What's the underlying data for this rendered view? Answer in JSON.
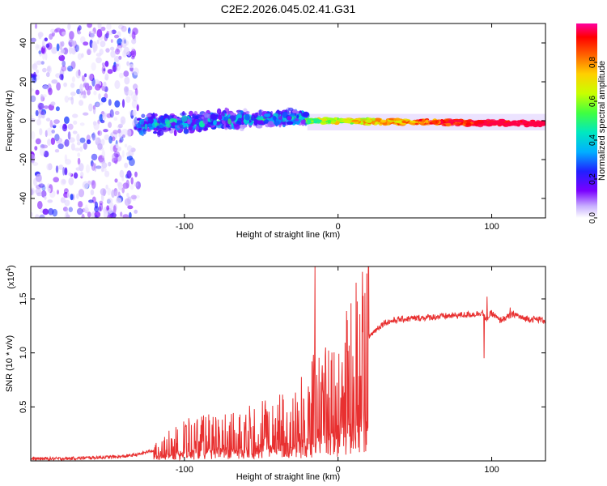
{
  "figure_title": "C2E2.2026.045.02.41.G31",
  "chart_data": [
    {
      "type": "heatmap",
      "title": "C2E2.2026.045.02.41.G31",
      "xlabel": "Height of straight line (km)",
      "ylabel": "Frequency (Hz)",
      "xlim": [
        -200,
        135
      ],
      "ylim": [
        -50,
        50
      ],
      "x_ticks": [
        -100,
        0,
        100
      ],
      "y_ticks": [
        -40,
        -20,
        0,
        20,
        40
      ],
      "colorbar": {
        "label": "Normalized spectral amplitude",
        "range": [
          0,
          1
        ],
        "ticks": [
          0.0,
          0.2,
          0.4,
          0.6,
          0.8
        ],
        "tick_labels": [
          "0.0",
          "0.2",
          "0.4",
          "0.6",
          "0.8"
        ],
        "colormap": [
          "#ffffff",
          "#c8b0ff",
          "#7a00ff",
          "#2020ff",
          "#00b0ff",
          "#00e8c0",
          "#40ff40",
          "#c8ff00",
          "#ffd000",
          "#ff6000",
          "#ff0000",
          "#ff00a0"
        ]
      },
      "regions": [
        {
          "name": "noise",
          "x_range": [
            -200,
            -130
          ],
          "freq_spread": 50,
          "amplitude": [
            0.0,
            0.3
          ]
        },
        {
          "name": "rising-signal",
          "x_range": [
            -130,
            -20
          ],
          "freq_center": [
            -2,
            2
          ],
          "freq_spread": [
            7,
            5
          ],
          "amplitude": [
            0.15,
            0.55
          ]
        },
        {
          "name": "strong-signal",
          "x_range": [
            -20,
            135
          ],
          "freq_center": [
            0,
            -1.5
          ],
          "freq_spread": 1.5,
          "amplitude": [
            0.45,
            0.95
          ]
        }
      ]
    },
    {
      "type": "line",
      "xlabel": "Height of straight line (km)",
      "ylabel": "SNR (10 * v/v)",
      "y_multiplier": "(x10^4)",
      "y_multiplier_base": "(x10",
      "y_multiplier_exp": "4",
      "y_multiplier_close": ")",
      "xlim": [
        -200,
        135
      ],
      "ylim": [
        0,
        1.8
      ],
      "x_ticks": [
        -100,
        0,
        100
      ],
      "y_ticks": [
        0.5,
        1.0,
        1.5
      ],
      "y_tick_labels": [
        "0.5",
        "1.0",
        "1.5"
      ],
      "color": "#e83030",
      "series": [
        {
          "name": "SNR",
          "x": [
            -200,
            -180,
            -160,
            -140,
            -130,
            -120,
            -110,
            -100,
            -90,
            -80,
            -70,
            -60,
            -50,
            -40,
            -30,
            -20,
            -15,
            -10,
            -5,
            0,
            5,
            10,
            15,
            20,
            25,
            30,
            40,
            50,
            60,
            70,
            80,
            90,
            94,
            96,
            100,
            105,
            110,
            115,
            120,
            130,
            135
          ],
          "values": [
            0.02,
            0.02,
            0.03,
            0.04,
            0.06,
            0.1,
            0.16,
            0.22,
            0.24,
            0.26,
            0.28,
            0.3,
            0.32,
            0.35,
            0.4,
            0.48,
            0.6,
            0.55,
            0.62,
            0.7,
            0.78,
            0.9,
            1.05,
            1.15,
            1.22,
            1.28,
            1.31,
            1.32,
            1.33,
            1.34,
            1.35,
            1.36,
            1.38,
            1.3,
            1.37,
            1.3,
            1.33,
            1.36,
            1.32,
            1.31,
            1.3
          ],
          "spikes": [
            {
              "x": -15,
              "value": 1.8
            },
            {
              "x": -8,
              "value": 1.05
            },
            {
              "x": 95,
              "value": 0.95
            },
            {
              "x": 97,
              "value": 1.52
            },
            {
              "x": 112,
              "value": 1.42
            }
          ]
        }
      ]
    }
  ]
}
